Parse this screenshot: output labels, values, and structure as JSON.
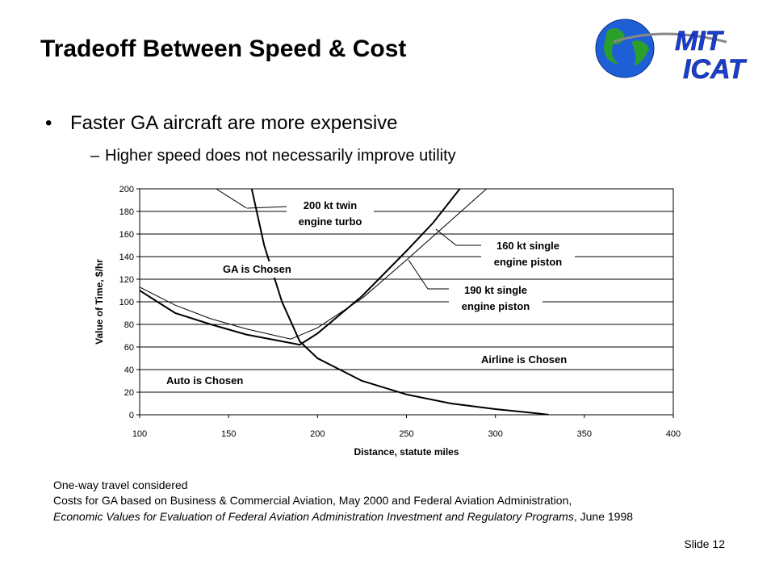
{
  "slide": {
    "title": "Tradeoff Between Speed & Cost",
    "bullets": [
      {
        "text": "Faster GA aircraft are more expensive",
        "sub": [
          "Higher speed does not necessarily improve utility"
        ]
      }
    ],
    "logo": {
      "top": "MIT",
      "bottom": "ICAT"
    },
    "notes": [
      "One-way travel considered",
      "Costs for GA based on Business & Commercial Aviation, May 2000 and Federal Aviation Administration,"
    ],
    "source": {
      "italic": "Economic Values for Evaluation of Federal Aviation Administration Investment and Regulatory Programs",
      "rest": ", June 1998"
    },
    "footer": "Slide 12"
  },
  "chart_data": {
    "type": "line",
    "xlabel": "Distance, statute miles",
    "ylabel": "Value of Time, $/hr",
    "xlim": [
      100,
      400
    ],
    "xticks": [
      100,
      150,
      200,
      250,
      300,
      350,
      400
    ],
    "ylim": [
      0,
      200
    ],
    "yticks": [
      0,
      20,
      40,
      60,
      80,
      100,
      120,
      140,
      160,
      180,
      200
    ],
    "grid": true,
    "color": "#000000",
    "series": [
      {
        "x": [
          163,
          170,
          180,
          190,
          200,
          225,
          250,
          275,
          300,
          325,
          330
        ],
        "values": [
          200,
          150,
          100,
          65,
          50,
          30,
          18,
          10,
          5,
          1,
          0
        ],
        "stroke_width": 2
      },
      {
        "name": "200 kt twin engine turbo",
        "x": [
          143,
          150,
          160
        ],
        "values": [
          200,
          193,
          183
        ],
        "stroke_width": 1
      },
      {
        "name": "160 kt single engine piston",
        "x": [
          100,
          110,
          120,
          140,
          160,
          180,
          190,
          200,
          225,
          250,
          265,
          280
        ],
        "values": [
          110,
          100,
          90,
          80,
          71,
          65,
          62,
          72,
          105,
          145,
          170,
          200
        ],
        "stroke_width": 2
      },
      {
        "name": "190 kt single engine piston",
        "x": [
          100,
          120,
          140,
          160,
          185,
          200,
          225,
          250,
          270,
          295
        ],
        "values": [
          113,
          97,
          85,
          76,
          67,
          77,
          103,
          137,
          165,
          200
        ],
        "stroke_width": 1
      }
    ],
    "annotations": [
      "GA is Chosen",
      "Airline is Chosen",
      "Auto is Chosen"
    ]
  }
}
